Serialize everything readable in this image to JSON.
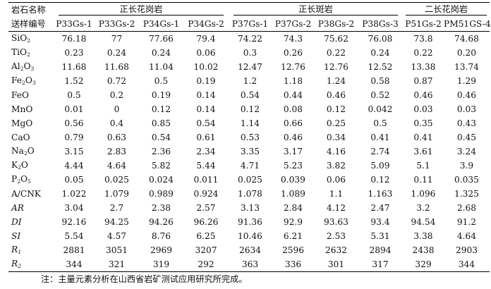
{
  "header": {
    "row_label_1": "岩石名称",
    "row_label_2": "送样编号",
    "groups": [
      "正长花岗岩",
      "正长斑岩",
      "二长花岗岩"
    ],
    "samples": [
      "P33Gs-1",
      "P33Gs-2",
      "P34Gs-1",
      "P34Gs-2",
      "P37Gs-1",
      "P37Gs-2",
      "P38Gs-2",
      "P38Gs-3",
      "P51Gs-2",
      "PM51GS-4"
    ]
  },
  "rows": [
    {
      "label": "SiO2",
      "values": [
        "76.18",
        "77",
        "77.66",
        "79.4",
        "74.22",
        "74.3",
        "75.62",
        "76.08",
        "73.8",
        "74.68"
      ]
    },
    {
      "label": "TiO2",
      "values": [
        "0.23",
        "0.24",
        "0.24",
        "0.06",
        "0.3",
        "0.26",
        "0.22",
        "0.24",
        "0.22",
        "0.20"
      ]
    },
    {
      "label": "Al2O3",
      "values": [
        "11.68",
        "11.68",
        "11.04",
        "10.02",
        "12.47",
        "12.76",
        "12.76",
        "12.52",
        "13.38",
        "13.74"
      ]
    },
    {
      "label": "Fe2O3",
      "values": [
        "1.52",
        "0.72",
        "0.5",
        "0.19",
        "1.2",
        "1.18",
        "1.24",
        "0.58",
        "0.87",
        "1.29"
      ]
    },
    {
      "label": "FeO",
      "values": [
        "0.5",
        "0.2",
        "0.19",
        "0.14",
        "0.54",
        "0.44",
        "0.46",
        "0.52",
        "0.46",
        "0.46"
      ]
    },
    {
      "label": "MnO",
      "values": [
        "0.01",
        "0",
        "0.12",
        "0.14",
        "0.12",
        "0.08",
        "0.12",
        "0.042",
        "0.03",
        "0.03"
      ]
    },
    {
      "label": "MgO",
      "values": [
        "0.56",
        "0.4",
        "0.85",
        "0.54",
        "1.14",
        "0.66",
        "0.25",
        "0.5",
        "0.35",
        "0.43"
      ]
    },
    {
      "label": "CaO",
      "values": [
        "0.79",
        "0.63",
        "0.54",
        "0.61",
        "0.53",
        "0.46",
        "0.34",
        "0.41",
        "0.41",
        "0.45"
      ]
    },
    {
      "label": "Na2O",
      "values": [
        "3.15",
        "2.83",
        "2.36",
        "2.34",
        "3.35",
        "3.17",
        "4.16",
        "2.74",
        "3.61",
        "3.24"
      ]
    },
    {
      "label": "K2O",
      "values": [
        "4.44",
        "4.64",
        "5.82",
        "5.44",
        "4.71",
        "5.23",
        "3.82",
        "5.09",
        "5.1",
        "3.9"
      ]
    },
    {
      "label": "P2O5",
      "values": [
        "0.05",
        "0.025",
        "0.024",
        "0.011",
        "0.025",
        "0.039",
        "0.06",
        "0.12",
        "0.11",
        "0.035"
      ]
    },
    {
      "label": "A/CNK",
      "values": [
        "1.022",
        "1.079",
        "0.989",
        "0.924",
        "1.078",
        "1.089",
        "1.1",
        "1.163",
        "1.096",
        "1.325"
      ]
    },
    {
      "label": "AR",
      "values": [
        "3.04",
        "2.7",
        "2.38",
        "2.57",
        "3.13",
        "2.84",
        "4.12",
        "2.47",
        "3.2",
        "2.68"
      ]
    },
    {
      "label": "DI",
      "values": [
        "92.16",
        "94.25",
        "94.26",
        "96.26",
        "91.36",
        "92.9",
        "93.63",
        "93.4",
        "94.54",
        "91.2"
      ]
    },
    {
      "label": "SI",
      "values": [
        "5.54",
        "4.57",
        "8.76",
        "6.25",
        "10.46",
        "6.21",
        "2.53",
        "5.31",
        "3.38",
        "4.64"
      ]
    },
    {
      "label": "R1",
      "values": [
        "2881",
        "3051",
        "2969",
        "3207",
        "2634",
        "2596",
        "2632",
        "2894",
        "2438",
        "2903"
      ]
    },
    {
      "label": "R2",
      "values": [
        "344",
        "321",
        "319",
        "292",
        "363",
        "336",
        "301",
        "317",
        "329",
        "344"
      ]
    }
  ],
  "note": "注：主量元素分析在山西省岩矿测试应用研究所完成。"
}
